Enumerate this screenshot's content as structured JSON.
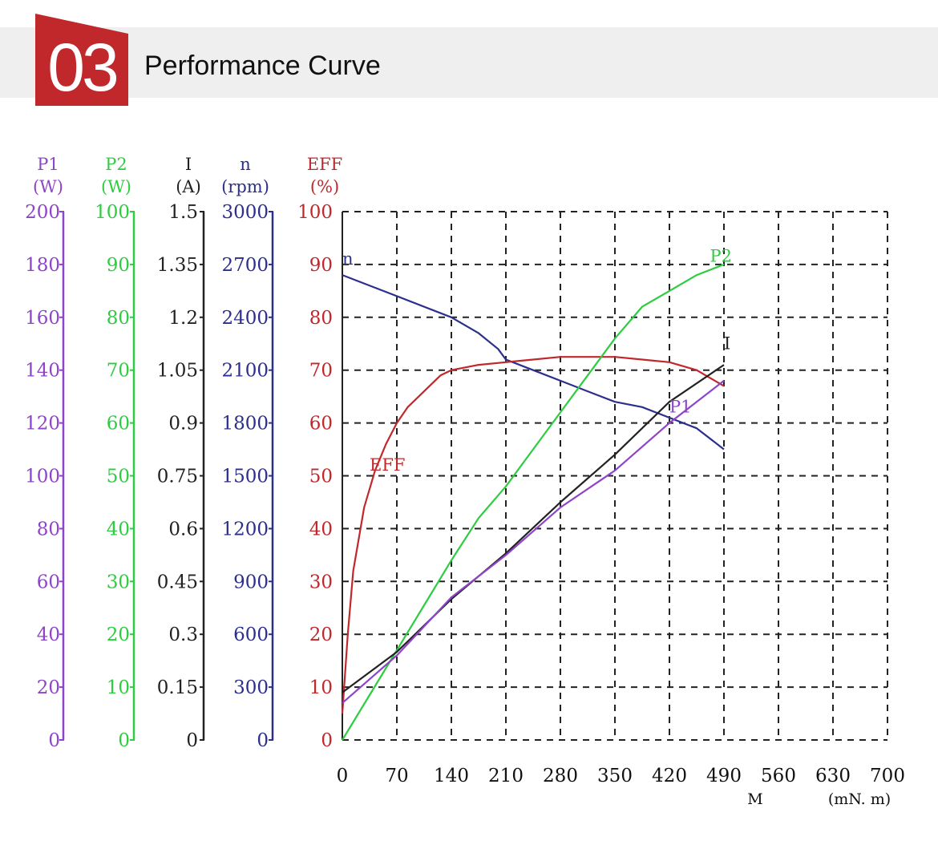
{
  "header": {
    "number": "03",
    "title": "Performance Curve",
    "badge_color": "#c0282b",
    "band_color": "#efefef"
  },
  "chart_data": {
    "type": "line",
    "grid": true,
    "grid_style": "dashed",
    "x_axis": {
      "name": "M",
      "unit": "(mN. m)",
      "min": 0,
      "max": 700,
      "ticks": [
        "0",
        "70",
        "140",
        "210",
        "280",
        "350",
        "420",
        "490",
        "560",
        "630",
        "700"
      ]
    },
    "y_axes": [
      {
        "key": "P1",
        "name": "P1",
        "unit": "(W)",
        "min": 0,
        "max": 200,
        "color": "#8e44c9",
        "ticks": [
          "0",
          "20",
          "40",
          "60",
          "80",
          "100",
          "120",
          "140",
          "160",
          "180",
          "200"
        ]
      },
      {
        "key": "P2",
        "name": "P2",
        "unit": "(W)",
        "min": 0,
        "max": 100,
        "color": "#2ecc40",
        "ticks": [
          "0",
          "10",
          "20",
          "30",
          "40",
          "50",
          "60",
          "70",
          "80",
          "90",
          "100"
        ]
      },
      {
        "key": "I",
        "name": "I",
        "unit": "(A)",
        "min": 0,
        "max": 1.5,
        "color": "#222222",
        "ticks": [
          "0",
          "0.15",
          "0.3",
          "0.45",
          "0.6",
          "0.75",
          "0.9",
          "1.05",
          "1.2",
          "1.35",
          "1.5"
        ]
      },
      {
        "key": "n",
        "name": "n",
        "unit": "(rpm)",
        "min": 0,
        "max": 3000,
        "color": "#2c2f8c",
        "ticks": [
          "0",
          "300",
          "600",
          "900",
          "1200",
          "1500",
          "1800",
          "2100",
          "2400",
          "2700",
          "3000"
        ]
      },
      {
        "key": "EFF",
        "name": "EFF",
        "unit": "(%)",
        "min": 0,
        "max": 100,
        "color": "#c0282b",
        "ticks": [
          "0",
          "10",
          "20",
          "30",
          "40",
          "50",
          "60",
          "70",
          "80",
          "90",
          "100"
        ]
      }
    ],
    "series": [
      {
        "name": "n",
        "axis": "n",
        "color": "#2c2f8c",
        "x": [
          0,
          70,
          140,
          175,
          200,
          210,
          245,
          280,
          315,
          350,
          385,
          420,
          455,
          490
        ],
        "y": [
          2640,
          2520,
          2400,
          2310,
          2220,
          2160,
          2100,
          2040,
          1980,
          1920,
          1890,
          1830,
          1770,
          1650
        ]
      },
      {
        "name": "EFF",
        "axis": "EFF",
        "color": "#c0282b",
        "x": [
          0,
          7,
          14,
          28,
          42,
          56,
          70,
          84,
          105,
          126,
          140,
          175,
          210,
          245,
          280,
          315,
          350,
          385,
          420,
          455,
          490
        ],
        "y": [
          5,
          20,
          32,
          44,
          51,
          56,
          60,
          63,
          66,
          69,
          70,
          71,
          71.5,
          72,
          72.5,
          72.5,
          72.5,
          72,
          71.5,
          70,
          67
        ]
      },
      {
        "name": "P2",
        "axis": "P2",
        "color": "#2ecc40",
        "x": [
          0,
          35,
          70,
          105,
          140,
          175,
          210,
          245,
          280,
          315,
          350,
          385,
          420,
          455,
          490
        ],
        "y": [
          0,
          8.5,
          17,
          25.5,
          34,
          42,
          48,
          55,
          62,
          69,
          76,
          82,
          85,
          88,
          90
        ]
      },
      {
        "name": "I",
        "axis": "I",
        "color": "#222222",
        "x": [
          0,
          70,
          140,
          210,
          280,
          350,
          420,
          490
        ],
        "y": [
          0.135,
          0.25,
          0.4,
          0.53,
          0.675,
          0.81,
          0.96,
          1.065
        ]
      },
      {
        "name": "P1",
        "axis": "P1",
        "color": "#8e44c9",
        "x": [
          0,
          70,
          140,
          210,
          280,
          350,
          420,
          490
        ],
        "y": [
          14,
          32,
          54,
          70,
          88,
          102,
          120,
          136
        ]
      }
    ],
    "labels": [
      {
        "text": "P2",
        "series": "P2",
        "x": 472,
        "y": 90.5
      },
      {
        "text": "I",
        "series": "I",
        "x": 490,
        "y": 1.11
      },
      {
        "text": "P1",
        "series": "P1",
        "x": 420,
        "y": 124
      },
      {
        "text": "EFF",
        "series": "EFF",
        "x": 35,
        "y": 51
      },
      {
        "text": "n",
        "series": "n",
        "x": 0,
        "y": 2700
      }
    ]
  }
}
